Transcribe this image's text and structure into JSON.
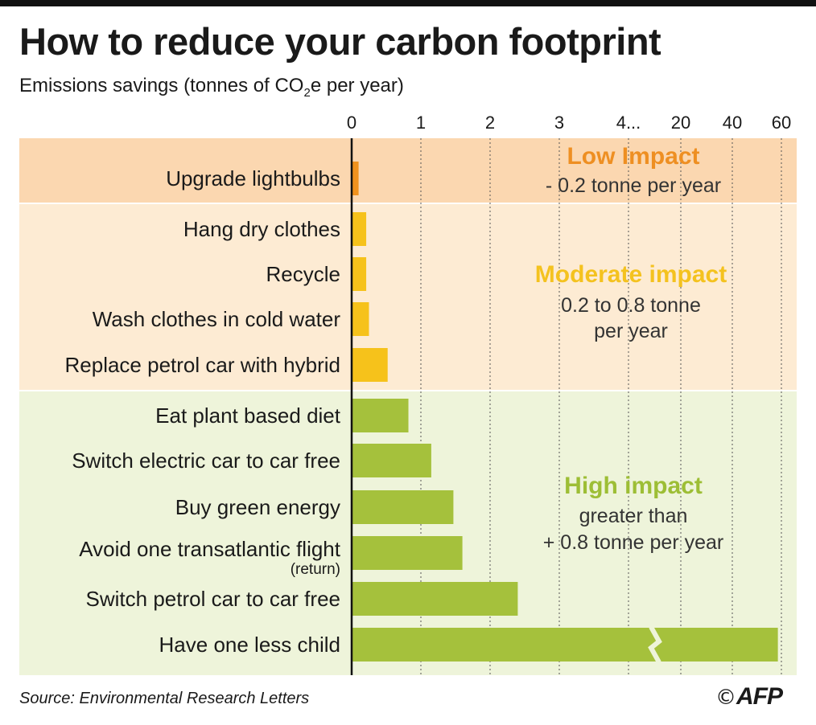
{
  "title": "How to reduce your carbon footprint",
  "subtitle": {
    "before": "Emissions savings (tonnes of CO",
    "subscript": "2",
    "after": "e per year)"
  },
  "source": "Source: Environmental Research Letters",
  "credit": {
    "symbol": "©",
    "brand": "AFP"
  },
  "colors": {
    "low": "#f0921e",
    "moderate": "#f6c21b",
    "high": "#a5c13c",
    "low_bg": "#fbd7b0",
    "moderate_bg": "#fdebd3",
    "high_bg": "#eef4da",
    "low_text": "#ee8f22",
    "moderate_text": "#f4c21f",
    "high_text": "#9dbe35"
  },
  "impact_labels": [
    {
      "group": "low",
      "title": "Low Impact",
      "lines": [
        "- 0.2 tonne per year"
      ]
    },
    {
      "group": "moderate",
      "title": "Moderate impact",
      "lines": [
        "0.2 to 0.8 tonne",
        "per year"
      ]
    },
    {
      "group": "high",
      "title": "High impact",
      "lines": [
        "greater than",
        "+ 0.8 tonne per year"
      ]
    }
  ],
  "chart_data": {
    "type": "bar",
    "orientation": "horizontal",
    "title": "How to reduce your carbon footprint",
    "xlabel": "Emissions savings (tonnes of CO2e per year)",
    "axis_break": "4...",
    "x_ticks": [
      "0",
      "1",
      "2",
      "3",
      "4...",
      "20",
      "40",
      "60"
    ],
    "xlim": [
      0,
      60
    ],
    "grid": true,
    "categories": [
      {
        "label": "Upgrade lightbulbs",
        "value": 0.1,
        "impact": "low"
      },
      {
        "label": "Hang dry clothes",
        "value": 0.21,
        "impact": "moderate"
      },
      {
        "label": "Recycle",
        "value": 0.21,
        "impact": "moderate"
      },
      {
        "label": "Wash clothes in cold water",
        "value": 0.25,
        "impact": "moderate"
      },
      {
        "label": "Replace petrol car with hybrid",
        "value": 0.52,
        "impact": "moderate"
      },
      {
        "label": "Eat plant based diet",
        "value": 0.82,
        "impact": "high"
      },
      {
        "label": "Switch electric car to car free",
        "value": 1.15,
        "impact": "high"
      },
      {
        "label": "Buy green energy",
        "value": 1.47,
        "impact": "high"
      },
      {
        "label": "Avoid one transatlantic flight",
        "sublabel": "(return)",
        "value": 1.6,
        "impact": "high"
      },
      {
        "label": "Switch petrol car to car free",
        "value": 2.4,
        "impact": "high"
      },
      {
        "label": "Have one less child",
        "value": 58.6,
        "impact": "high"
      }
    ]
  }
}
